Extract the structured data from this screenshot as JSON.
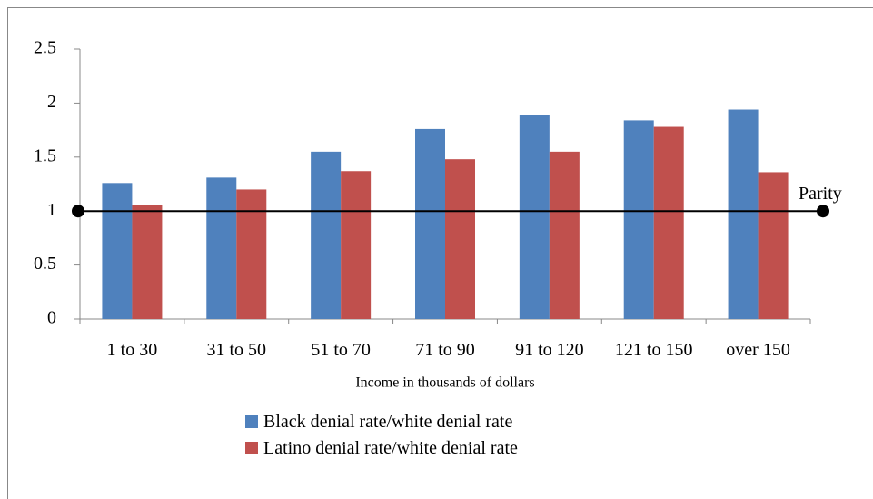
{
  "chart_data": {
    "type": "bar",
    "x_label": "Income in thousands of dollars",
    "categories": [
      "1 to 30",
      "31 to 50",
      "51 to 70",
      "71 to 90",
      "91 to 120",
      "121 to 150",
      "over 150"
    ],
    "series": [
      {
        "name": "Black denial rate/white denial rate",
        "color": "#4f81bd",
        "values": [
          1.26,
          1.31,
          1.55,
          1.76,
          1.89,
          1.84,
          1.94
        ]
      },
      {
        "name": "Latino denial rate/white denial rate",
        "color": "#c0504d",
        "values": [
          1.06,
          1.2,
          1.37,
          1.48,
          1.55,
          1.78,
          1.36
        ]
      }
    ],
    "ylim": [
      0,
      2.5
    ],
    "yticks": [
      0,
      0.5,
      1,
      1.5,
      2,
      2.5
    ],
    "annotations": [
      {
        "text": "Parity",
        "value": 1
      }
    ]
  }
}
